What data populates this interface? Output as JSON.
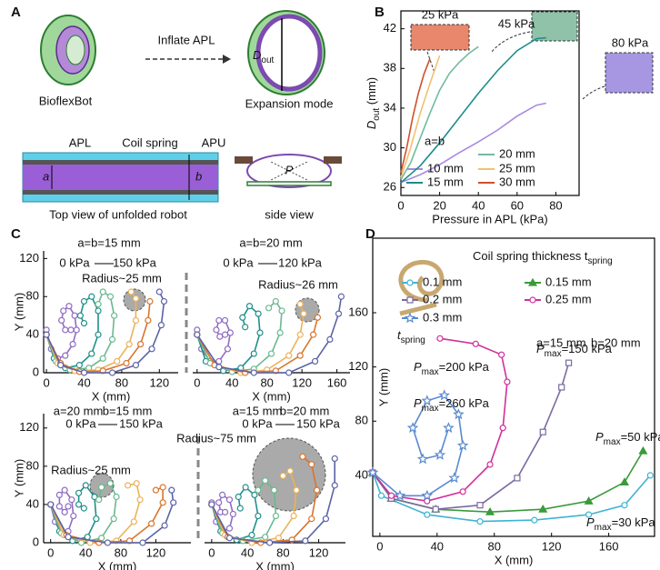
{
  "panels": {
    "labels": [
      "A",
      "B",
      "C",
      "D"
    ]
  },
  "diagram": {
    "bioflexbot": "BioflexBot",
    "inflate": "Inflate APL",
    "expansion": "Expansion mode",
    "d_out": [
      "D",
      "out"
    ],
    "apl": "APL",
    "coil": "Coil spring",
    "apu": "APU",
    "a": "a",
    "b": "b",
    "p": "P",
    "top_view": "Top view of unfolded robot",
    "side_view": "side view"
  },
  "chart_data": [
    {
      "type": "line",
      "x_label": "Pressure in APL (kPa)",
      "y_label": [
        "D",
        "out",
        " (mm)"
      ],
      "xlim": [
        0,
        92
      ],
      "ylim": [
        25.2,
        43.8
      ],
      "xticks": [
        0,
        20,
        40,
        60,
        80
      ],
      "yticks": [
        26,
        30,
        34,
        38,
        42
      ],
      "frame": true,
      "legend_title": "a=b",
      "annotations": [
        "25 kPa",
        "45 kPa",
        "80 kPa"
      ],
      "series": [
        {
          "name": "10 mm",
          "color": "#a98ae0",
          "x": [
            0,
            10,
            20,
            30,
            40,
            50,
            60,
            70,
            75
          ],
          "values": [
            26.5,
            27.3,
            28.3,
            29.5,
            30.6,
            31.8,
            33.2,
            34.3,
            34.5
          ]
        },
        {
          "name": "15 mm",
          "color": "#1e8c8c",
          "x": [
            0,
            10,
            20,
            30,
            40,
            50,
            60,
            70,
            75
          ],
          "values": [
            26.5,
            28.2,
            30.5,
            33,
            35.5,
            37.8,
            39.8,
            41,
            41.1
          ]
        },
        {
          "name": "20 mm",
          "color": "#72bb9c",
          "x": [
            0,
            5,
            10,
            15,
            20,
            25,
            30,
            35,
            40
          ],
          "values": [
            26.8,
            28.5,
            31,
            33.5,
            35.8,
            37.5,
            38.6,
            39.5,
            40.2
          ]
        },
        {
          "name": "25 mm",
          "color": "#f2c070",
          "x": [
            0,
            5,
            10,
            15,
            20
          ],
          "values": [
            27,
            30,
            33.5,
            36.5,
            39.3
          ]
        },
        {
          "name": "30 mm",
          "color": "#d0502a",
          "x": [
            0,
            3,
            6,
            9,
            12,
            15
          ],
          "values": [
            27.5,
            30,
            33,
            35.5,
            37.5,
            39
          ]
        }
      ]
    },
    {
      "type": "line",
      "x_label": "X (mm)",
      "y_label": "Y (mm)",
      "xlim": [
        -3,
        140
      ],
      "ylim": [
        0,
        128
      ],
      "xticks": [
        0,
        40,
        80,
        120
      ],
      "yticks": [
        0,
        40,
        80,
        120
      ],
      "marker": "circle",
      "annotations": [
        "a=b=15 mm",
        "0 kPa",
        "150 kPa",
        "Radius~25 mm"
      ],
      "series": [
        {
          "color": "#8f6cc2",
          "x": [
            0,
            5,
            12,
            20,
            28,
            32,
            30,
            24,
            18,
            16,
            20,
            26
          ],
          "values": [
            45,
            25,
            15,
            18,
            30,
            45,
            60,
            70,
            65,
            55,
            45,
            45
          ]
        },
        {
          "color": "#1f8f8a",
          "x": [
            0,
            8,
            20,
            35,
            48,
            55,
            55,
            48,
            40,
            36,
            40
          ],
          "values": [
            40,
            15,
            5,
            8,
            20,
            40,
            65,
            80,
            75,
            60,
            52
          ]
        },
        {
          "color": "#6ab98f",
          "x": [
            0,
            10,
            25,
            45,
            60,
            70,
            72,
            68,
            60,
            55
          ],
          "values": [
            40,
            12,
            3,
            5,
            15,
            35,
            60,
            80,
            85,
            72
          ]
        },
        {
          "color": "#ecb25a",
          "x": [
            0,
            12,
            30,
            55,
            75,
            88,
            95,
            95,
            90
          ],
          "values": [
            40,
            10,
            2,
            3,
            12,
            30,
            55,
            78,
            85
          ]
        },
        {
          "color": "#d8752e",
          "x": [
            0,
            15,
            35,
            60,
            85,
            100,
            108,
            110
          ],
          "values": [
            40,
            10,
            1,
            2,
            10,
            30,
            55,
            75
          ]
        },
        {
          "color": "#5b62a8",
          "x": [
            0,
            15,
            40,
            70,
            95,
            112,
            122,
            125,
            120
          ],
          "values": [
            40,
            8,
            0,
            0,
            8,
            25,
            50,
            75,
            85
          ]
        }
      ]
    },
    {
      "type": "line",
      "x_label": "X (mm)",
      "xlim": [
        -5,
        175
      ],
      "ylim": [
        0,
        128
      ],
      "xticks": [
        0,
        40,
        80,
        120,
        160
      ],
      "marker": "circle",
      "annotations": [
        "a=b=20 mm",
        "0 kPa",
        "120 kPa",
        "Radius~26 mm"
      ],
      "series": [
        {
          "color": "#8f6cc2",
          "x": [
            0,
            5,
            15,
            25,
            35,
            38,
            32,
            25,
            22,
            26,
            32
          ],
          "values": [
            45,
            25,
            12,
            12,
            25,
            42,
            55,
            55,
            45,
            38,
            40
          ]
        },
        {
          "color": "#1f8f8a",
          "x": [
            0,
            10,
            30,
            50,
            65,
            72,
            70,
            60,
            52,
            55
          ],
          "values": [
            40,
            12,
            2,
            5,
            20,
            42,
            62,
            70,
            58,
            48
          ]
        },
        {
          "color": "#6ab98f",
          "x": [
            0,
            15,
            40,
            65,
            85,
            95,
            97,
            90,
            82
          ],
          "values": [
            40,
            10,
            1,
            4,
            20,
            42,
            65,
            75,
            68
          ]
        },
        {
          "color": "#ecb25a",
          "x": [
            0,
            20,
            50,
            80,
            105,
            118,
            122,
            118
          ],
          "values": [
            40,
            8,
            0,
            3,
            18,
            40,
            62,
            72
          ]
        },
        {
          "color": "#d8752e",
          "x": [
            0,
            20,
            55,
            90,
            118,
            133,
            138
          ],
          "values": [
            40,
            8,
            0,
            2,
            18,
            40,
            58
          ]
        },
        {
          "color": "#5b62a8",
          "x": [
            0,
            25,
            65,
            105,
            135,
            152,
            162,
            165
          ],
          "values": [
            40,
            6,
            0,
            0,
            12,
            35,
            62,
            80
          ]
        }
      ]
    },
    {
      "type": "line",
      "x_label": "X (mm)",
      "y_label": "Y (mm)",
      "xlim": [
        -8,
        160
      ],
      "ylim": [
        0,
        135
      ],
      "xticks": [
        0,
        40,
        80,
        120
      ],
      "yticks": [
        0,
        40,
        80,
        120
      ],
      "marker": "circle",
      "annotations": [
        "a=20 mm",
        "b=15 mm",
        "0 kPa",
        "150 kPa",
        "Radius~25 mm"
      ],
      "series": [
        {
          "color": "#8f6cc2",
          "x": [
            0,
            5,
            12,
            20,
            26,
            24,
            16,
            10,
            10,
            16,
            20
          ],
          "values": [
            40,
            22,
            10,
            12,
            28,
            45,
            55,
            50,
            38,
            32,
            38
          ]
        },
        {
          "color": "#1f8f8a",
          "x": [
            0,
            10,
            25,
            42,
            52,
            50,
            40,
            32,
            32,
            38
          ],
          "values": [
            40,
            12,
            2,
            6,
            25,
            48,
            60,
            52,
            40,
            36
          ]
        },
        {
          "color": "#6ab98f",
          "x": [
            0,
            12,
            35,
            58,
            72,
            75,
            68,
            58,
            55
          ],
          "values": [
            40,
            10,
            0,
            5,
            25,
            48,
            62,
            58,
            45
          ]
        },
        {
          "color": "#ecb25a",
          "x": [
            0,
            15,
            45,
            75,
            95,
            102,
            98,
            88
          ],
          "values": [
            40,
            8,
            0,
            2,
            22,
            45,
            62,
            60
          ]
        },
        {
          "color": "#d8752e",
          "x": [
            0,
            18,
            55,
            90,
            115,
            128,
            128,
            120
          ],
          "values": [
            40,
            8,
            0,
            2,
            20,
            42,
            58,
            55
          ]
        },
        {
          "color": "#5b62a8",
          "x": [
            0,
            20,
            65,
            105,
            130,
            140,
            138
          ],
          "values": [
            40,
            6,
            0,
            0,
            18,
            42,
            55
          ]
        }
      ]
    },
    {
      "type": "line",
      "x_label": "X (mm)",
      "xlim": [
        -8,
        150
      ],
      "ylim": [
        0,
        135
      ],
      "xticks": [
        0,
        40,
        80,
        120
      ],
      "marker": "circle",
      "annotations": [
        "a=15 mm",
        "b=20 mm",
        "0 kPa",
        "150 kPa",
        "Radius~75 mm"
      ],
      "series": [
        {
          "color": "#8f6cc2",
          "x": [
            0,
            5,
            12,
            20,
            24,
            20,
            12,
            8,
            10,
            15
          ],
          "values": [
            42,
            22,
            12,
            15,
            30,
            45,
            50,
            42,
            32,
            32
          ]
        },
        {
          "color": "#1f8f8a",
          "x": [
            0,
            10,
            28,
            45,
            52,
            48,
            38,
            30,
            32
          ],
          "values": [
            40,
            12,
            3,
            8,
            28,
            50,
            58,
            48,
            36
          ]
        },
        {
          "color": "#6ab98f",
          "x": [
            0,
            12,
            35,
            60,
            72,
            70,
            60,
            52
          ],
          "values": [
            40,
            10,
            2,
            6,
            28,
            55,
            65,
            55
          ]
        },
        {
          "color": "#ecb25a",
          "x": [
            0,
            15,
            45,
            75,
            92,
            95,
            88,
            80
          ],
          "values": [
            40,
            8,
            0,
            5,
            28,
            55,
            75,
            70
          ]
        },
        {
          "color": "#d8752e",
          "x": [
            0,
            18,
            55,
            90,
            112,
            118,
            112,
            102
          ],
          "values": [
            40,
            6,
            0,
            3,
            25,
            55,
            82,
            90
          ]
        },
        {
          "color": "#5b62a8",
          "x": [
            0,
            20,
            65,
            105,
            128,
            138,
            138
          ],
          "values": [
            40,
            5,
            0,
            2,
            25,
            60,
            88
          ]
        }
      ]
    },
    {
      "type": "line",
      "x_label": "X (mm)",
      "y_label": "Y (mm)",
      "xlim": [
        -5,
        192
      ],
      "ylim": [
        -5,
        215
      ],
      "xticks": [
        0,
        40,
        80,
        120,
        160
      ],
      "yticks": [
        40,
        80,
        120,
        160
      ],
      "frame": true,
      "legend_title": [
        "Coil spring thickness t",
        "spring"
      ],
      "annotations": [
        [
          "t",
          "spring"
        ],
        "a=15 mm",
        "b=20 mm",
        [
          "P",
          "max",
          "=200 kPa"
        ],
        [
          "P",
          "max",
          "=150 kPa"
        ],
        [
          "P",
          "max",
          "=260 kPa"
        ],
        [
          "P",
          "max",
          "=50 kPa"
        ],
        [
          "P",
          "max",
          "=30 kPa"
        ]
      ],
      "series": [
        {
          "name": "0.1 mm",
          "color": "#3fb3d3",
          "marker": "circle",
          "x": [
            -5,
            1,
            33,
            70,
            108,
            146,
            171,
            189
          ],
          "values": [
            42,
            25,
            11,
            6,
            7,
            11,
            18,
            40
          ]
        },
        {
          "name": "0.15 mm",
          "color": "#3a9a3a",
          "marker": "triangle",
          "x": [
            -5,
            8,
            39,
            77,
            114,
            146,
            171,
            184
          ],
          "values": [
            42,
            23,
            15,
            13,
            15,
            21,
            35,
            58
          ]
        },
        {
          "name": "0.2 mm",
          "color": "#7a6aa0",
          "marker": "square",
          "x": [
            -5,
            8,
            39,
            70,
            96,
            114,
            127,
            132
          ],
          "values": [
            42,
            23,
            15,
            18,
            38,
            72,
            105,
            123
          ]
        },
        {
          "name": "0.25 mm",
          "color": "#d0309a",
          "marker": "circle",
          "x": [
            -5,
            8,
            33,
            58,
            77,
            86,
            89,
            85,
            67,
            42
          ],
          "values": [
            42,
            25,
            21,
            28,
            48,
            75,
            109,
            129,
            137,
            141
          ]
        },
        {
          "name": "0.3 mm",
          "color": "#5a8ad0",
          "marker": "star",
          "x": [
            -5,
            14,
            33,
            52,
            58,
            55,
            45,
            33,
            23,
            30,
            42,
            48
          ],
          "values": [
            42,
            25,
            25,
            38,
            62,
            85,
            99,
            95,
            75,
            52,
            55,
            75
          ]
        }
      ]
    }
  ]
}
